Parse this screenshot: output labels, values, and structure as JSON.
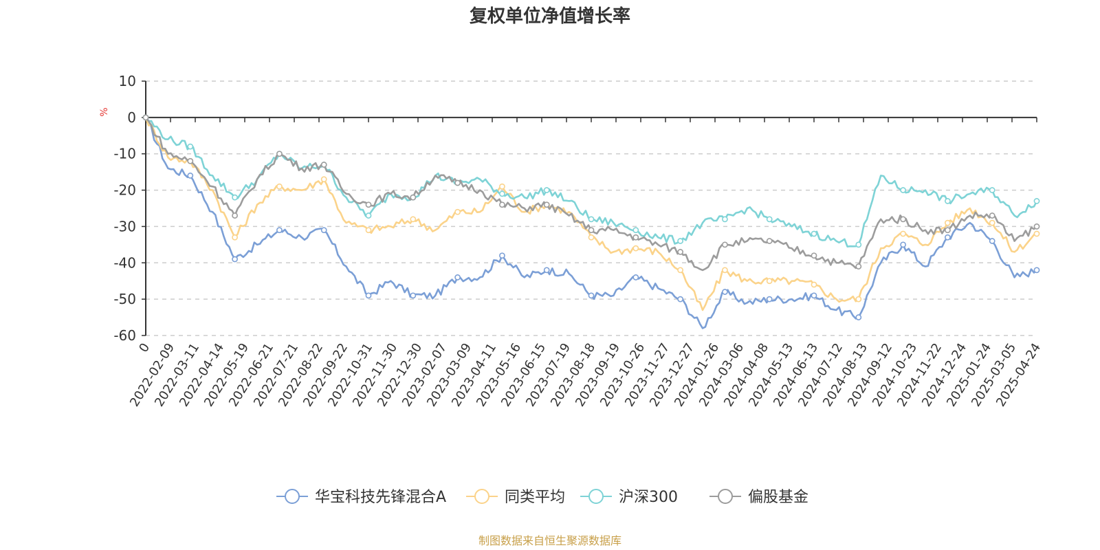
{
  "chart_data": {
    "type": "line",
    "title": "复权单位净值增长率",
    "ylabel": "%",
    "ylim": [
      -60,
      10
    ],
    "yticks": [
      10,
      0,
      -10,
      -20,
      -30,
      -40,
      -50,
      -60
    ],
    "grid": true,
    "legend_position": "bottom-center",
    "x_tick_labels": [
      "0",
      "2022-02-09",
      "2022-03-11",
      "2022-04-14",
      "2022-05-19",
      "2022-06-21",
      "2022-07-21",
      "2022-08-22",
      "2022-09-22",
      "2022-10-31",
      "2022-11-30",
      "2022-12-30",
      "2023-02-07",
      "2023-03-09",
      "2023-04-11",
      "2023-05-16",
      "2023-06-15",
      "2023-07-19",
      "2023-08-18",
      "2023-09-19",
      "2023-10-26",
      "2023-11-27",
      "2023-12-27",
      "2024-01-26",
      "2024-03-06",
      "2024-04-08",
      "2024-05-13",
      "2024-06-13",
      "2024-07-12",
      "2024-08-13",
      "2024-09-12",
      "2024-10-23",
      "2024-11-22",
      "2024-12-24",
      "2025-01-24",
      "2025-03-05",
      "2025-04-24"
    ],
    "series": [
      {
        "name": "华宝科技先锋混合A",
        "color": "#7b9fd6",
        "values": [
          0,
          -14,
          -16,
          -26,
          -39,
          -35,
          -31,
          -33,
          -31,
          -41,
          -49,
          -45,
          -49,
          -49,
          -44,
          -44,
          -38,
          -44,
          -42,
          -43,
          -49,
          -49,
          -44,
          -47,
          -50,
          -58,
          -48,
          -51,
          -50,
          -50,
          -49,
          -53,
          -55,
          -40,
          -35,
          -41,
          -33,
          -29,
          -34,
          -44,
          -42
        ]
      },
      {
        "name": "同类平均",
        "color": "#fbd38a",
        "values": [
          0,
          -11,
          -12,
          -20,
          -33,
          -24,
          -19,
          -20,
          -17,
          -29,
          -31,
          -30,
          -28,
          -31,
          -26,
          -26,
          -19,
          -26,
          -24,
          -26,
          -33,
          -37,
          -36,
          -37,
          -42,
          -53,
          -42,
          -45,
          -45,
          -45,
          -46,
          -50,
          -50,
          -36,
          -32,
          -35,
          -29,
          -25,
          -29,
          -37,
          -32
        ]
      },
      {
        "name": "沪深300",
        "color": "#7ed3d6",
        "values": [
          0,
          -6,
          -8,
          -16,
          -22,
          -17,
          -10,
          -14,
          -13,
          -22,
          -27,
          -21,
          -22,
          -16,
          -18,
          -17,
          -21,
          -22,
          -20,
          -23,
          -28,
          -29,
          -31,
          -33,
          -34,
          -29,
          -28,
          -25,
          -28,
          -30,
          -32,
          -34,
          -35,
          -16,
          -20,
          -20,
          -23,
          -21,
          -20,
          -27,
          -23
        ]
      },
      {
        "name": "偏股基金",
        "color": "#9c9c9c",
        "values": [
          0,
          -10,
          -12,
          -19,
          -27,
          -17,
          -10,
          -14,
          -13,
          -21,
          -24,
          -21,
          -22,
          -16,
          -18,
          -20,
          -24,
          -25,
          -24,
          -27,
          -31,
          -31,
          -33,
          -35,
          -37,
          -42,
          -35,
          -34,
          -34,
          -36,
          -38,
          -40,
          -41,
          -28,
          -28,
          -31,
          -31,
          -27,
          -27,
          -34,
          -30
        ]
      }
    ]
  },
  "source_text": "制图数据来自恒生聚源数据库"
}
